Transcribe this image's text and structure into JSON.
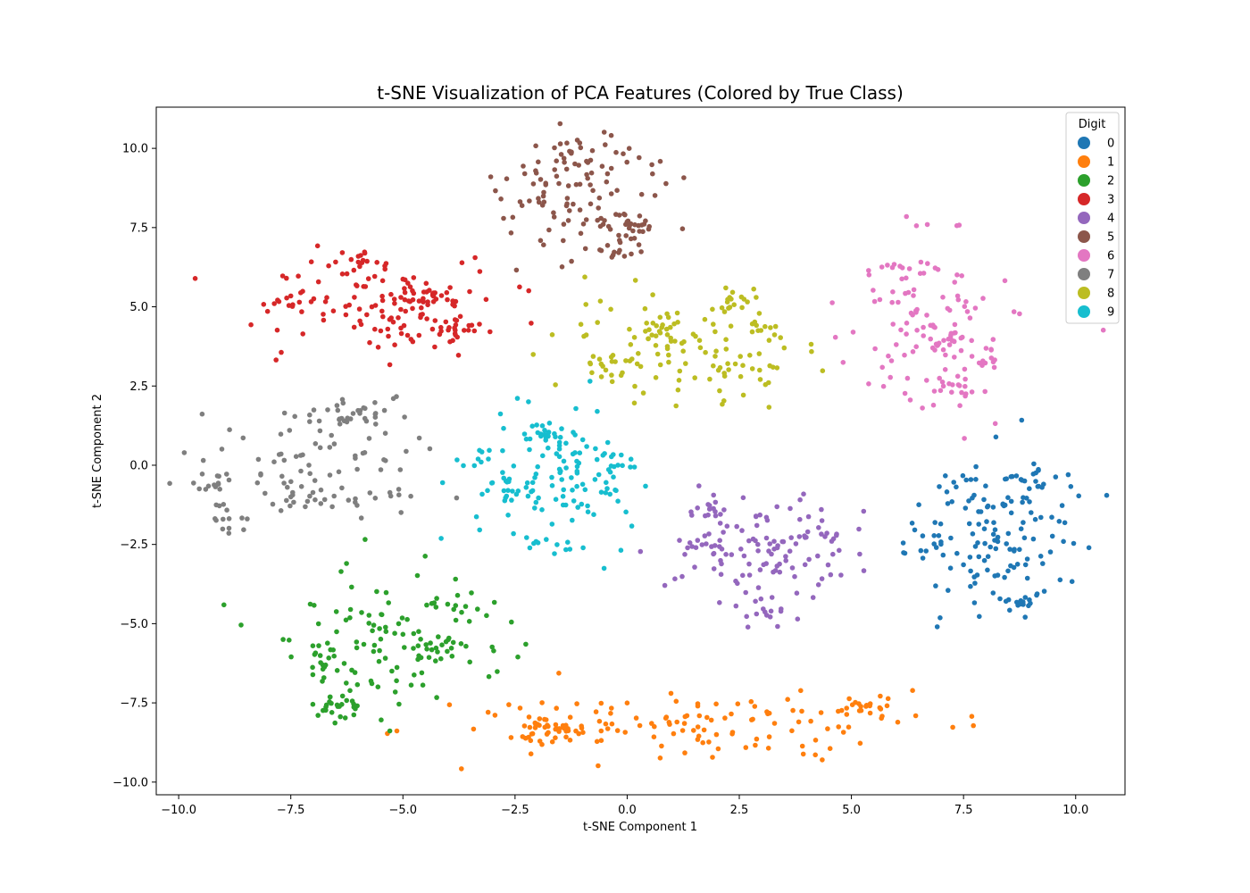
{
  "chart_data": {
    "type": "scatter",
    "title": "t-SNE Visualization of PCA Features (Colored by True Class)",
    "xlabel": "t-SNE Component 1",
    "ylabel": "t-SNE Component 2",
    "xlim": [
      -10.5,
      11.1
    ],
    "ylim": [
      -10.4,
      11.3
    ],
    "xticks": [
      -10.0,
      -7.5,
      -5.0,
      -2.5,
      0.0,
      2.5,
      5.0,
      7.5,
      10.0
    ],
    "xtick_labels": [
      "−10.0",
      "−7.5",
      "−5.0",
      "−2.5",
      "0.0",
      "2.5",
      "5.0",
      "7.5",
      "10.0"
    ],
    "yticks": [
      -10.0,
      -7.5,
      -5.0,
      -2.5,
      0.0,
      2.5,
      5.0,
      7.5,
      10.0
    ],
    "ytick_labels": [
      "−10.0",
      "−7.5",
      "−5.0",
      "−2.5",
      "0.0",
      "2.5",
      "5.0",
      "7.5",
      "10.0"
    ],
    "grid": false,
    "legend": {
      "title": "Digit",
      "placement": "top-right"
    },
    "series": [
      {
        "name": "0",
        "color": "#1f77b4",
        "cx": 8.4,
        "cy": -2.2,
        "sx": 0.95,
        "sy": 1.25,
        "n": 170,
        "hotspots": [
          [
            7.3,
            -0.4
          ],
          [
            8.9,
            -4.3
          ],
          [
            9.0,
            -0.3
          ],
          [
            6.7,
            -2.7
          ]
        ]
      },
      {
        "name": "1",
        "color": "#ff7f0e",
        "cx": 1.6,
        "cy": -8.1,
        "sx": 2.4,
        "sy": 0.55,
        "n": 180,
        "hotspots": [
          [
            5.4,
            -7.6
          ],
          [
            -2.0,
            -8.5
          ],
          [
            -1.6,
            -8.3
          ]
        ]
      },
      {
        "name": "2",
        "color": "#2ca02c",
        "cx": -5.3,
        "cy": -5.5,
        "sx": 1.3,
        "sy": 1.05,
        "n": 170,
        "hotspots": [
          [
            -6.7,
            -6.3
          ],
          [
            -4.2,
            -5.8
          ],
          [
            -3.8,
            -4.3
          ],
          [
            -6.4,
            -7.6
          ]
        ]
      },
      {
        "name": "3",
        "color": "#d62728",
        "cx": -5.4,
        "cy": 5.0,
        "sx": 1.45,
        "sy": 0.8,
        "n": 180,
        "hotspots": [
          [
            -7.3,
            5.2
          ],
          [
            -5.9,
            6.5
          ],
          [
            -3.8,
            4.2
          ],
          [
            -4.5,
            5.3
          ]
        ]
      },
      {
        "name": "4",
        "color": "#9467bd",
        "cx": 3.1,
        "cy": -2.6,
        "sx": 1.05,
        "sy": 0.9,
        "n": 150,
        "hotspots": [
          [
            1.8,
            -2.5
          ],
          [
            3.2,
            -4.6
          ],
          [
            4.3,
            -2.3
          ],
          [
            1.8,
            -1.4
          ]
        ]
      },
      {
        "name": "5",
        "color": "#8c564b",
        "cx": -0.9,
        "cy": 8.6,
        "sx": 0.9,
        "sy": 1.0,
        "n": 150,
        "hotspots": [
          [
            -1.2,
            9.9
          ],
          [
            -1.9,
            9.1
          ],
          [
            -0.2,
            6.8
          ],
          [
            0.1,
            7.6
          ]
        ]
      },
      {
        "name": "6",
        "color": "#e377c2",
        "cx": 6.8,
        "cy": 4.4,
        "sx": 1.0,
        "sy": 1.2,
        "n": 150,
        "hotspots": [
          [
            5.9,
            6.2
          ],
          [
            7.4,
            2.4
          ],
          [
            6.9,
            3.9
          ],
          [
            8.0,
            3.3
          ]
        ]
      },
      {
        "name": "7",
        "color": "#7f7f7f",
        "cx": -7.1,
        "cy": -0.2,
        "sx": 1.3,
        "sy": 0.95,
        "n": 150,
        "hotspots": [
          [
            -8.9,
            -1.8
          ],
          [
            -6.6,
            1.6
          ],
          [
            -5.8,
            1.5
          ],
          [
            -9.2,
            -0.6
          ]
        ]
      },
      {
        "name": "8",
        "color": "#bcbd22",
        "cx": 1.6,
        "cy": 3.5,
        "sx": 1.25,
        "sy": 0.85,
        "n": 160,
        "hotspots": [
          [
            2.4,
            5.2
          ],
          [
            0.7,
            4.4
          ],
          [
            3.0,
            4.2
          ],
          [
            -0.4,
            3.2
          ]
        ]
      },
      {
        "name": "9",
        "color": "#17becf",
        "cx": -1.6,
        "cy": -0.4,
        "sx": 0.95,
        "sy": 1.1,
        "n": 170,
        "hotspots": [
          [
            -1.9,
            1.0
          ],
          [
            -2.6,
            -0.6
          ],
          [
            -0.3,
            0.0
          ],
          [
            -1.7,
            -2.5
          ]
        ]
      }
    ]
  }
}
